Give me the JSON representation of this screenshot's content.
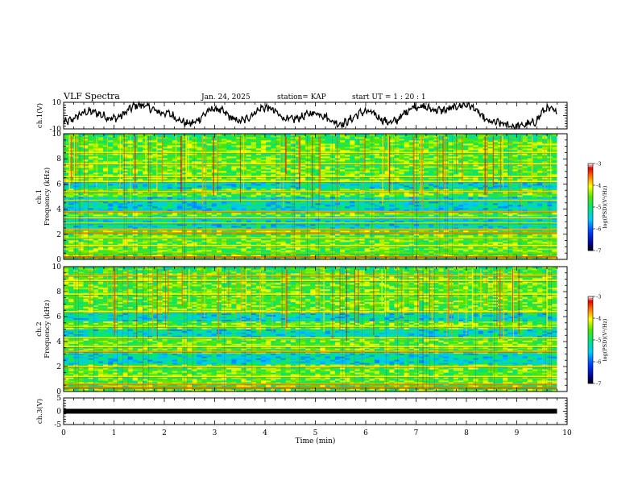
{
  "header": {
    "title": "VLF Spectra",
    "date": "Jan. 24, 2025",
    "station": "station= KAP",
    "start_ut": "start UT =   1 : 20 : 1"
  },
  "chart_data": [
    {
      "id": "ch1-waveform",
      "type": "line",
      "ylabel": "ch.1(V)",
      "ylim": [
        -10,
        10
      ],
      "yticks": [
        "10",
        "-10"
      ],
      "xlim": [
        0,
        10
      ],
      "data_xmax": 9.8,
      "description_points": "smoothed amplitude envelope",
      "y_anchor": [
        [
          0.0,
          -5
        ],
        [
          0.5,
          3
        ],
        [
          1.0,
          -2
        ],
        [
          1.5,
          8
        ],
        [
          2.0,
          2
        ],
        [
          2.5,
          -6
        ],
        [
          3.0,
          5
        ],
        [
          3.5,
          -4
        ],
        [
          4.0,
          6
        ],
        [
          4.5,
          -3
        ],
        [
          5.0,
          2
        ],
        [
          5.5,
          -6
        ],
        [
          6.0,
          3
        ],
        [
          6.5,
          -5
        ],
        [
          7.0,
          7
        ],
        [
          7.5,
          4
        ],
        [
          8.0,
          8
        ],
        [
          8.5,
          -5
        ],
        [
          9.0,
          -8
        ],
        [
          9.3,
          -6
        ],
        [
          9.6,
          5
        ],
        [
          9.8,
          3
        ]
      ]
    },
    {
      "id": "ch1-spectrogram",
      "type": "heatmap",
      "ylabel": "ch.1",
      "ylabel2": "Frequency (kHz)",
      "ylim": [
        0,
        10
      ],
      "yticks": [
        "0",
        "2",
        "4",
        "6",
        "8",
        "10"
      ],
      "xlim": [
        0,
        10
      ],
      "data_xmax": 9.8,
      "colorbar": {
        "label": "log(PSD)(V²/Hz)",
        "range": [
          -7,
          -3
        ],
        "ticks": [
          "-3",
          "-4",
          "-5",
          "-6",
          "-7"
        ]
      },
      "bands_khz": [
        {
          "f": 0.2,
          "level": -3.5
        },
        {
          "f": 0.5,
          "level": -4.5
        },
        {
          "f": 1.1,
          "level": -4.0
        },
        {
          "f": 1.7,
          "level": -4.2
        },
        {
          "f": 2.1,
          "level": -3.6
        },
        {
          "f": 2.4,
          "level": -3.8
        },
        {
          "f": 2.9,
          "level": -4.3
        },
        {
          "f": 3.3,
          "level": -4.1
        },
        {
          "f": 3.8,
          "level": -3.7
        },
        {
          "f": 4.7,
          "level": -4.2
        },
        {
          "f": 5.4,
          "level": -3.9
        },
        {
          "f": 6.2,
          "level": -4.0
        },
        {
          "f": 6.6,
          "level": -4.1
        },
        {
          "f": 7.6,
          "level": -4.0
        },
        {
          "f": 8.5,
          "level": -4.1
        }
      ],
      "low_power_bands_khz": [
        [
          3.9,
          5.0
        ],
        [
          2.5,
          3.5
        ],
        [
          5.6,
          6.1
        ]
      ]
    },
    {
      "id": "ch2-spectrogram",
      "type": "heatmap",
      "ylabel": "ch.2",
      "ylabel2": "Frequency (kHz)",
      "ylim": [
        0,
        10
      ],
      "yticks": [
        "0",
        "2",
        "4",
        "6",
        "8",
        "10"
      ],
      "xlim": [
        0,
        10
      ],
      "data_xmax": 9.8,
      "colorbar": {
        "label": "log(PSD)(V²/Hz)",
        "range": [
          -7,
          -3
        ],
        "ticks": [
          "-3",
          "-4",
          "-5",
          "-6",
          "-7"
        ]
      },
      "bands_khz": [
        {
          "f": 0.3,
          "level": -3.5
        },
        {
          "f": 0.6,
          "level": -3.7
        },
        {
          "f": 1.2,
          "level": -4.0
        },
        {
          "f": 2.0,
          "level": -3.9
        },
        {
          "f": 3.2,
          "level": -3.7
        },
        {
          "f": 3.6,
          "level": -4.0
        },
        {
          "f": 4.3,
          "level": -4.1
        },
        {
          "f": 5.2,
          "level": -4.2
        },
        {
          "f": 6.4,
          "level": -4.0
        },
        {
          "f": 7.8,
          "level": -4.1
        },
        {
          "f": 8.9,
          "level": -4.0
        },
        {
          "f": 9.3,
          "level": -3.8
        }
      ],
      "low_power_bands_khz": [
        [
          2.2,
          3.1
        ],
        [
          4.4,
          5.0
        ],
        [
          5.6,
          6.3
        ]
      ]
    },
    {
      "id": "ch3-waveform",
      "type": "line",
      "ylabel": "ch.3(V)",
      "ylim": [
        -5,
        5
      ],
      "yticks": [
        "5",
        "0",
        "-5"
      ],
      "xlim": [
        0,
        10
      ],
      "data_xmax": 9.8,
      "constant_value": 0,
      "xlabel": "Time (min)",
      "xticks": [
        "0",
        "1",
        "2",
        "3",
        "4",
        "5",
        "6",
        "7",
        "8",
        "9",
        "10"
      ]
    }
  ]
}
